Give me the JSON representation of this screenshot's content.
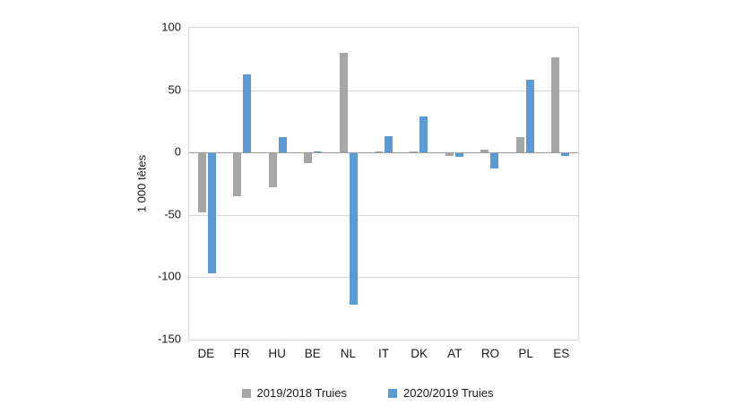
{
  "chart_data": {
    "type": "bar",
    "title": "",
    "xlabel": "",
    "ylabel": "1 000 têtes",
    "ylim": [
      -150,
      100
    ],
    "yticks": [
      100,
      50,
      0,
      -50,
      -100,
      -150
    ],
    "grid": true,
    "legend_position": "bottom",
    "categories": [
      "DE",
      "FR",
      "HU",
      "BE",
      "NL",
      "IT",
      "DK",
      "AT",
      "RO",
      "PL",
      "ES"
    ],
    "series": [
      {
        "name": "2019/2018 Truies",
        "color": "#a6a6a6",
        "values": [
          -47,
          -34,
          -27,
          -8,
          80,
          1,
          1,
          -2,
          2,
          12,
          76
        ]
      },
      {
        "name": "2020/2019 Truies",
        "color": "#5b9bd5",
        "values": [
          -96,
          63,
          12,
          0,
          -121,
          13,
          29,
          -3,
          -12,
          58,
          -2
        ]
      }
    ]
  }
}
